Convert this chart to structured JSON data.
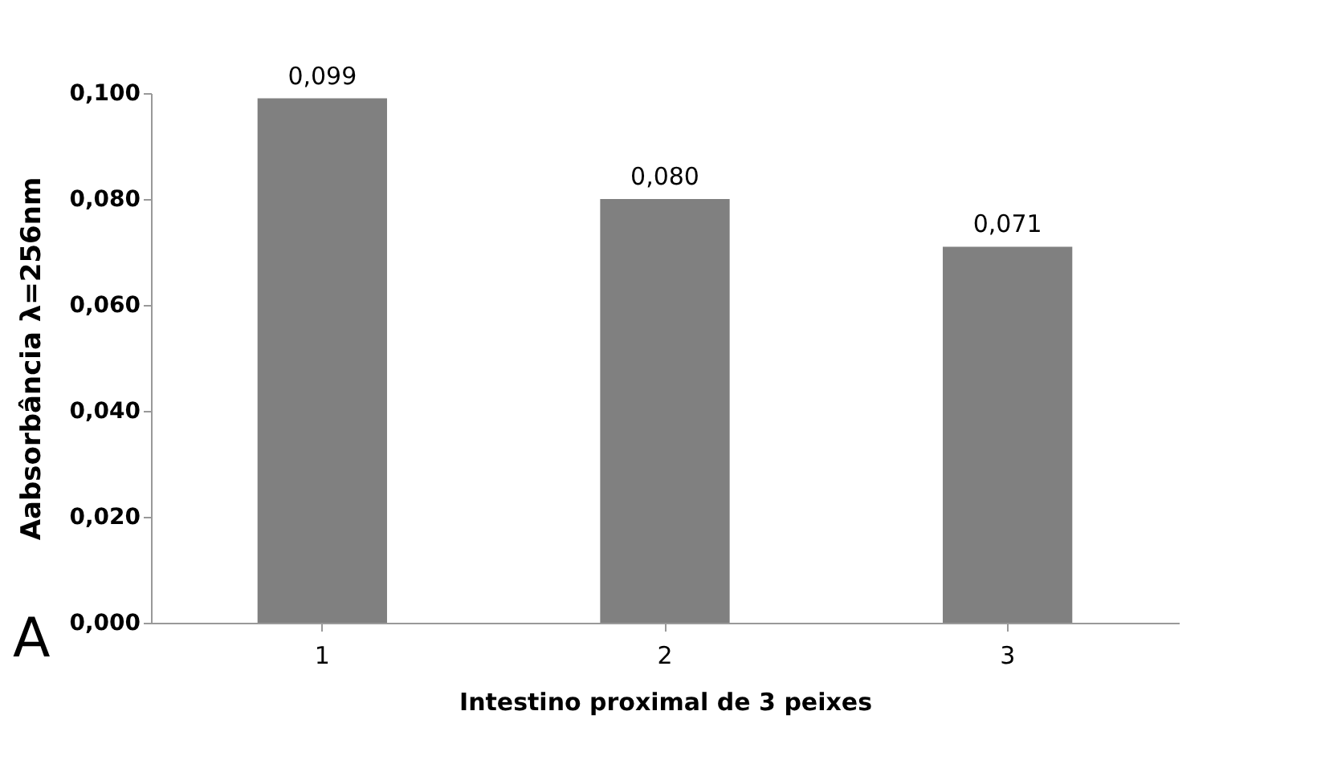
{
  "chart_data": {
    "type": "bar",
    "xlabel": "Intestino proximal de 3 peixes",
    "ylabel": "Aabsorbância λ=256nm",
    "categories": [
      "1",
      "2",
      "3"
    ],
    "values": [
      0.099,
      0.08,
      0.071
    ],
    "color": "#808080",
    "value_labels": [
      "0,099",
      "0,080",
      "0,071"
    ],
    "ylim": [
      0,
      0.1
    ],
    "yticks": [
      {
        "value": 0,
        "label": "0,000"
      },
      {
        "value": 0.02,
        "label": "0,020"
      },
      {
        "value": 0.04,
        "label": "0,040"
      },
      {
        "value": 0.06,
        "label": "0,060"
      },
      {
        "value": 0.08,
        "label": "0,080"
      },
      {
        "value": 0.1,
        "label": "0,100"
      }
    ],
    "annotations": [
      "A"
    ]
  }
}
